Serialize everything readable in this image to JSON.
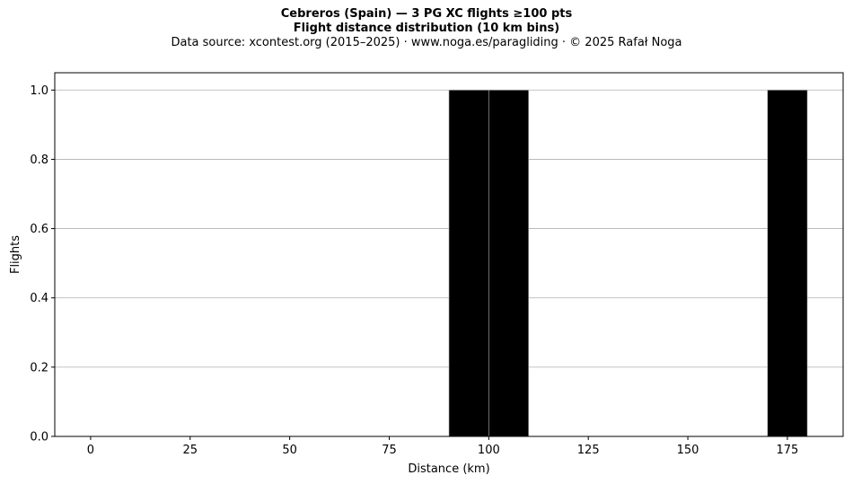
{
  "header": {
    "title": "Cebreros (Spain)  —  3 PG XC flights ≥100 pts",
    "subtitle": "Flight distance distribution (10 km bins)",
    "source": "Data source: xcontest.org (2015–2025)  ·  www.noga.es/paragliding  ·  © 2025 Rafał Noga"
  },
  "chart_data": {
    "type": "bar",
    "title": "Cebreros (Spain)  —  3 PG XC flights ≥100 pts",
    "subtitle": "Flight distance distribution (10 km bins)",
    "xlabel": "Distance (km)",
    "ylabel": "Flights",
    "bin_width": 10,
    "bins": [
      {
        "start": 90,
        "end": 100,
        "count": 1
      },
      {
        "start": 100,
        "end": 110,
        "count": 1
      },
      {
        "start": 170,
        "end": 180,
        "count": 1
      }
    ],
    "xlim": [
      -9,
      189
    ],
    "ylim": [
      0,
      1.05
    ],
    "xticks": [
      0,
      25,
      50,
      75,
      100,
      125,
      150,
      175
    ],
    "yticks": [
      0.0,
      0.2,
      0.4,
      0.6,
      0.8,
      1.0
    ],
    "xtick_labels": [
      "0",
      "25",
      "50",
      "75",
      "100",
      "125",
      "150",
      "175"
    ],
    "ytick_labels": [
      "0.0",
      "0.2",
      "0.4",
      "0.6",
      "0.8",
      "1.0"
    ],
    "grid": "y-major",
    "bar_color": "#000000",
    "grid_color": "#b0b0b0"
  }
}
